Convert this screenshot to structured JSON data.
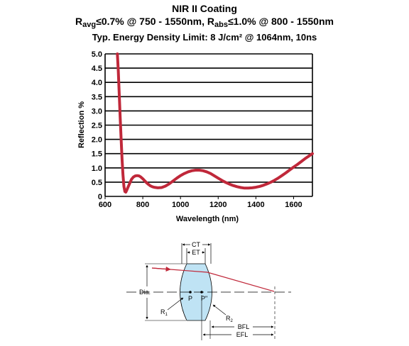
{
  "title": {
    "line1": "NIR II Coating",
    "line2": {
      "r_a": "R",
      "avg_sub": "avg",
      "r_avg_cond": "≤0.7% @ 750 - 1550nm, R",
      "abs_sub": "abs",
      "r_abs_cond": "≤1.0% @ 800 - 1550nm"
    },
    "line3": "Typ. Energy Density Limit: 8 J/cm² @ 1064nm, 10ns"
  },
  "chart_data": {
    "type": "line",
    "xlabel": "Wavelength (nm)",
    "ylabel": "Reflection %",
    "xlim": [
      600,
      1700
    ],
    "ylim": [
      0,
      5.0
    ],
    "xticks": [
      600,
      800,
      1000,
      1200,
      1400,
      1600
    ],
    "xtick_labels": [
      "600",
      "800",
      "1000",
      "1200",
      "1400",
      "1600"
    ],
    "yticks": [
      0,
      0.5,
      1.0,
      1.5,
      2.0,
      2.5,
      3.0,
      3.5,
      4.0,
      4.5,
      5.0
    ],
    "ytick_labels": [
      "0",
      "0.5",
      "1.0",
      "1.5",
      "2.0",
      "2.5",
      "3.0",
      "3.5",
      "4.0",
      "4.5",
      "5.0"
    ],
    "grid": "horizontal",
    "line_color": "#c0283a",
    "series": [
      {
        "x": [
          665,
          670,
          675,
          680,
          685,
          690,
          695,
          700,
          705,
          710,
          715,
          720,
          730,
          740,
          750,
          760,
          770,
          780,
          790,
          800,
          810,
          820,
          830,
          840,
          850,
          860,
          880,
          900,
          920,
          940,
          960,
          980,
          1000,
          1020,
          1040,
          1060,
          1080,
          1100,
          1120,
          1140,
          1160,
          1180,
          1200,
          1220,
          1240,
          1260,
          1280,
          1300,
          1320,
          1340,
          1360,
          1380,
          1400,
          1420,
          1440,
          1460,
          1480,
          1500,
          1520,
          1540,
          1560,
          1580,
          1600,
          1620,
          1640,
          1660,
          1680,
          1700
        ],
        "y": [
          5.0,
          4.4,
          3.6,
          2.8,
          2.0,
          1.3,
          0.75,
          0.35,
          0.17,
          0.15,
          0.22,
          0.3,
          0.45,
          0.6,
          0.68,
          0.72,
          0.73,
          0.72,
          0.68,
          0.62,
          0.55,
          0.48,
          0.42,
          0.37,
          0.34,
          0.32,
          0.3,
          0.31,
          0.36,
          0.44,
          0.54,
          0.64,
          0.73,
          0.8,
          0.86,
          0.9,
          0.92,
          0.92,
          0.9,
          0.86,
          0.8,
          0.72,
          0.64,
          0.56,
          0.49,
          0.43,
          0.38,
          0.34,
          0.31,
          0.29,
          0.29,
          0.3,
          0.32,
          0.35,
          0.39,
          0.44,
          0.5,
          0.57,
          0.65,
          0.74,
          0.83,
          0.93,
          1.03,
          1.12,
          1.22,
          1.32,
          1.41,
          1.5
        ]
      }
    ]
  },
  "diagram": {
    "labels": {
      "ct": "CT",
      "et": "ET",
      "dia": "Dia.",
      "r1": "R",
      "r1_sub": "1",
      "r2": "R",
      "r2_sub": "2",
      "p": "P",
      "p_prime": "P\"",
      "bfl": "BFL",
      "efl": "EFL"
    },
    "lens_color": "#bfe3f4",
    "ray_color": "#c0283a"
  }
}
